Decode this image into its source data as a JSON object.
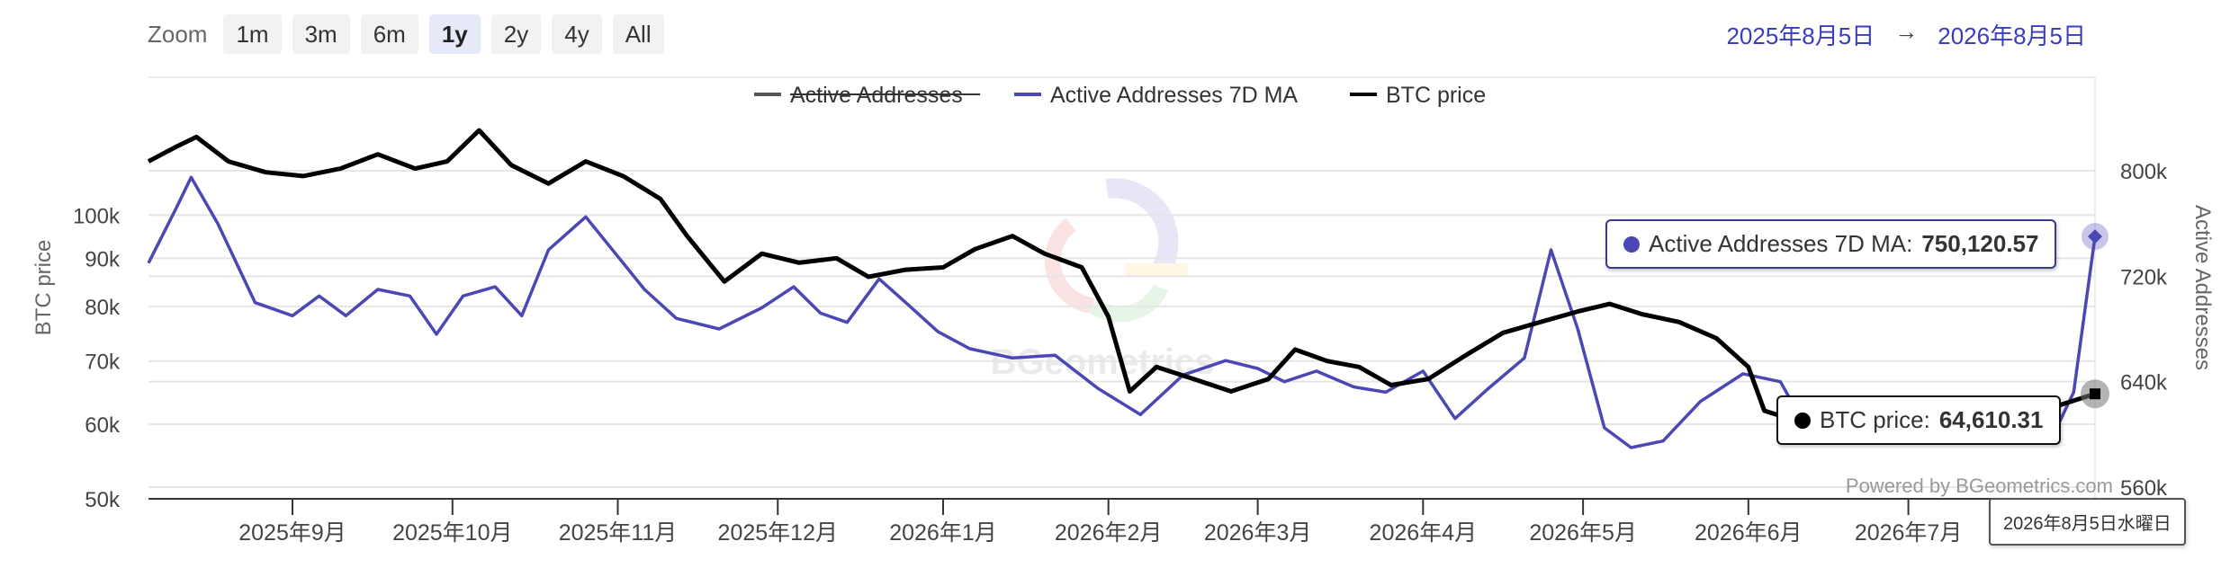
{
  "zoom": {
    "label": "Zoom",
    "buttons": [
      "1m",
      "3m",
      "6m",
      "1y",
      "2y",
      "4y",
      "All"
    ],
    "active": "1y"
  },
  "date_range": {
    "from": "2025年8月5日",
    "arrow": "→",
    "to": "2026年8月5日"
  },
  "watermark": "BGeometrics",
  "credit": "Powered by BGeometrics.com",
  "tooltips": {
    "aa_label": "Active Addresses 7D MA: ",
    "aa_value": "750,120.57",
    "btc_label": "BTC price: ",
    "btc_value": "64,610.31",
    "date": "2026年8月5日水曜日"
  },
  "colors": {
    "active_addresses": "#555555",
    "active_addresses_7d_ma": "#4b47b5",
    "btc_price": "#000000",
    "grid": "#e6e6e6",
    "axis_text": "#444444"
  },
  "chart_data": {
    "type": "line",
    "x_axis": {
      "ticks": [
        "2025年9月",
        "2025年10月",
        "2025年11月",
        "2025年12月",
        "2026年1月",
        "2026年2月",
        "2026年3月",
        "2026年4月",
        "2026年5月",
        "2026年6月",
        "2026年7月"
      ],
      "range": [
        "2025-08-05",
        "2026-08-05"
      ]
    },
    "y_left": {
      "label": "BTC price",
      "scale": "log",
      "ticks": [
        "50k",
        "60k",
        "70k",
        "80k",
        "90k",
        "100k"
      ],
      "range": [
        50000,
        140000
      ]
    },
    "y_right": {
      "label": "Active Addresses",
      "ticks": [
        "560k",
        "640k",
        "720k",
        "800k"
      ],
      "range": [
        560000,
        800000
      ]
    },
    "legend": {
      "placement": "top-center",
      "items": [
        {
          "name": "Active Addresses",
          "hidden": true
        },
        {
          "name": "Active Addresses 7D MA",
          "hidden": false
        },
        {
          "name": "BTC price",
          "hidden": false
        }
      ]
    },
    "grid": true,
    "series": [
      {
        "name": "Active Addresses 7D MA",
        "axis": "right",
        "points": [
          [
            "2025-08-05",
            730000
          ],
          [
            "2025-08-10",
            770000
          ],
          [
            "2025-08-13",
            795000
          ],
          [
            "2025-08-18",
            760000
          ],
          [
            "2025-08-25",
            700000
          ],
          [
            "2025-09-01",
            690000
          ],
          [
            "2025-09-06",
            705000
          ],
          [
            "2025-09-11",
            690000
          ],
          [
            "2025-09-17",
            710000
          ],
          [
            "2025-09-23",
            705000
          ],
          [
            "2025-09-28",
            676000
          ],
          [
            "2025-10-03",
            705000
          ],
          [
            "2025-10-09",
            712000
          ],
          [
            "2025-10-14",
            690000
          ],
          [
            "2025-10-19",
            740000
          ],
          [
            "2025-10-26",
            765000
          ],
          [
            "2025-11-01",
            735000
          ],
          [
            "2025-11-06",
            710000
          ],
          [
            "2025-11-12",
            688000
          ],
          [
            "2025-11-20",
            680000
          ],
          [
            "2025-11-28",
            696000
          ],
          [
            "2025-12-04",
            712000
          ],
          [
            "2025-12-09",
            692000
          ],
          [
            "2025-12-14",
            685000
          ],
          [
            "2025-12-20",
            718000
          ],
          [
            "2025-12-25",
            700000
          ],
          [
            "2025-12-31",
            678000
          ],
          [
            "2026-01-06",
            665000
          ],
          [
            "2026-01-14",
            658000
          ],
          [
            "2026-01-22",
            660000
          ],
          [
            "2026-01-30",
            635000
          ],
          [
            "2026-02-07",
            615000
          ],
          [
            "2026-02-15",
            645000
          ],
          [
            "2026-02-23",
            656000
          ],
          [
            "2026-03-01",
            650000
          ],
          [
            "2026-03-06",
            640000
          ],
          [
            "2026-03-12",
            648000
          ],
          [
            "2026-03-19",
            636000
          ],
          [
            "2026-03-25",
            632000
          ],
          [
            "2026-04-01",
            648000
          ],
          [
            "2026-04-07",
            612000
          ],
          [
            "2026-04-13",
            634000
          ],
          [
            "2026-04-20",
            658000
          ],
          [
            "2026-04-25",
            740000
          ],
          [
            "2026-04-30",
            680000
          ],
          [
            "2026-05-05",
            605000
          ],
          [
            "2026-05-10",
            590000
          ],
          [
            "2026-05-16",
            595000
          ],
          [
            "2026-05-23",
            625000
          ],
          [
            "2026-05-31",
            646000
          ],
          [
            "2026-06-07",
            640000
          ],
          [
            "2026-06-12",
            604000
          ],
          [
            "2026-06-18",
            598000
          ],
          [
            "2026-06-24",
            612000
          ],
          [
            "2026-06-30",
            610000
          ],
          [
            "2026-07-06",
            618000
          ],
          [
            "2026-07-12",
            616000
          ],
          [
            "2026-07-18",
            602000
          ],
          [
            "2026-07-24",
            600000
          ],
          [
            "2026-07-28",
            598000
          ],
          [
            "2026-08-01",
            632000
          ],
          [
            "2026-08-05",
            750120.57
          ]
        ]
      },
      {
        "name": "BTC price",
        "axis": "left",
        "points": [
          [
            "2025-08-05",
            114000
          ],
          [
            "2025-08-10",
            118000
          ],
          [
            "2025-08-14",
            121000
          ],
          [
            "2025-08-20",
            114000
          ],
          [
            "2025-08-27",
            111000
          ],
          [
            "2025-09-03",
            110000
          ],
          [
            "2025-09-10",
            112000
          ],
          [
            "2025-09-17",
            116000
          ],
          [
            "2025-09-24",
            112000
          ],
          [
            "2025-09-30",
            114000
          ],
          [
            "2025-10-06",
            123000
          ],
          [
            "2025-10-12",
            113000
          ],
          [
            "2025-10-19",
            108000
          ],
          [
            "2025-10-26",
            114000
          ],
          [
            "2025-11-02",
            110000
          ],
          [
            "2025-11-09",
            104000
          ],
          [
            "2025-11-14",
            95000
          ],
          [
            "2025-11-21",
            85000
          ],
          [
            "2025-11-28",
            91000
          ],
          [
            "2025-12-05",
            89000
          ],
          [
            "2025-12-12",
            90000
          ],
          [
            "2025-12-18",
            86000
          ],
          [
            "2025-12-25",
            87500
          ],
          [
            "2026-01-01",
            88000
          ],
          [
            "2026-01-07",
            92000
          ],
          [
            "2026-01-14",
            95000
          ],
          [
            "2026-01-20",
            91000
          ],
          [
            "2026-01-27",
            88000
          ],
          [
            "2026-02-01",
            78000
          ],
          [
            "2026-02-05",
            65000
          ],
          [
            "2026-02-10",
            69000
          ],
          [
            "2026-02-17",
            67000
          ],
          [
            "2026-02-24",
            65000
          ],
          [
            "2026-03-03",
            67000
          ],
          [
            "2026-03-08",
            72000
          ],
          [
            "2026-03-14",
            70000
          ],
          [
            "2026-03-20",
            69000
          ],
          [
            "2026-03-26",
            66000
          ],
          [
            "2026-04-02",
            67000
          ],
          [
            "2026-04-09",
            71000
          ],
          [
            "2026-04-16",
            75000
          ],
          [
            "2026-04-23",
            77000
          ],
          [
            "2026-04-30",
            79000
          ],
          [
            "2026-05-06",
            80500
          ],
          [
            "2026-05-12",
            78500
          ],
          [
            "2026-05-19",
            77000
          ],
          [
            "2026-05-26",
            74000
          ],
          [
            "2026-06-01",
            69000
          ],
          [
            "2026-06-04",
            62000
          ],
          [
            "2026-06-10",
            60500
          ],
          [
            "2026-06-20",
            61000
          ],
          [
            "2026-06-30",
            61500
          ],
          [
            "2026-07-10",
            61000
          ],
          [
            "2026-07-20",
            61800
          ],
          [
            "2026-07-28",
            62500
          ],
          [
            "2026-08-05",
            64610.31
          ]
        ]
      }
    ]
  }
}
